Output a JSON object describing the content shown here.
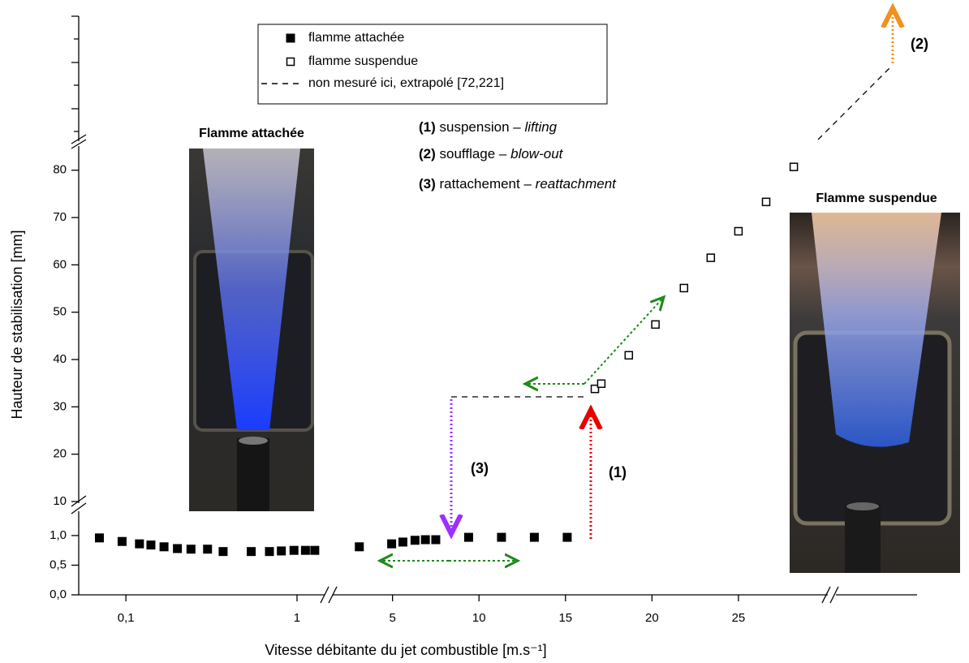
{
  "chart_data": {
    "type": "scatter",
    "xlabel": "Vitesse débitante du jet combustible [m.s⁻¹]",
    "ylabel": "Hauteur de stabilisation [mm]",
    "x_segments": [
      {
        "scale": "log",
        "xlim": [
          0.053,
          1.45
        ],
        "xticks": [
          {
            "value": 0.1,
            "label": "0,1"
          },
          1
        ]
      },
      {
        "scale": "linear",
        "xlim": [
          1.45,
          30.4
        ],
        "xticks": [
          5,
          10,
          15,
          20,
          25
        ]
      }
    ],
    "y_segments": [
      {
        "ylim": [
          0,
          1.3
        ],
        "yticks": [
          {
            "value": 0,
            "label": "0,0"
          },
          {
            "value": 0.5,
            "label": "0,5"
          },
          {
            "value": 1,
            "label": "1,0"
          }
        ]
      },
      {
        "ylim": [
          10,
          85.1
        ],
        "yticks": [
          10,
          20,
          30,
          40,
          50,
          60,
          70,
          80
        ]
      }
    ],
    "series": [
      {
        "name": "flamme attachée",
        "marker": "filled",
        "color": "#000000",
        "x": [
          0.07,
          0.095,
          0.12,
          0.14,
          0.167,
          0.2,
          0.24,
          0.3,
          0.37,
          0.54,
          0.69,
          0.81,
          0.96,
          1.12,
          1.27,
          3.08,
          4.95,
          5.6,
          6.3,
          6.9,
          7.5,
          9.4,
          11.3,
          13.2,
          15.1
        ],
        "values": [
          0.96,
          0.9,
          0.86,
          0.84,
          0.81,
          0.78,
          0.77,
          0.77,
          0.73,
          0.73,
          0.73,
          0.74,
          0.75,
          0.75,
          0.75,
          0.81,
          0.86,
          0.89,
          0.92,
          0.93,
          0.93,
          0.97,
          0.97,
          0.97,
          0.97
        ]
      },
      {
        "name": "flamme suspendue",
        "marker": "open",
        "color": "#000000",
        "x": [
          16.7,
          17.07,
          18.66,
          20.2,
          21.85,
          23.4,
          25.0,
          26.6,
          28.2
        ],
        "values": [
          33.8,
          34.9,
          40.9,
          47.4,
          55.1,
          61.5,
          67.1,
          73.3,
          80.7
        ]
      }
    ],
    "legend": {
      "position": "top",
      "dashed_label": "non mesuré ici, extrapolé [72,221]"
    },
    "annotations": [
      {
        "label": "(1)",
        "text": "suspension –",
        "term": "lifting",
        "color": "#e60000"
      },
      {
        "label": "(2)",
        "text": "soufflage –",
        "term": "blow-out",
        "color": "#f0901e"
      },
      {
        "label": "(3)",
        "text": "rattachement –",
        "term": "reattachment",
        "color": "#9b30ff"
      }
    ],
    "photos": [
      "Flamme attachée",
      "Flamme suspendue"
    ]
  }
}
